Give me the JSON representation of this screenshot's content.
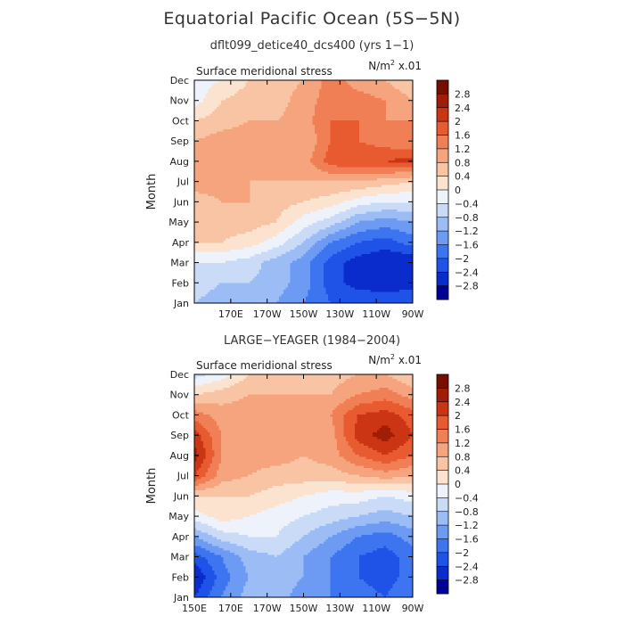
{
  "header": {
    "title": "Equatorial Pacific Ocean (5S−5N)"
  },
  "chart_data": [
    {
      "type": "heatmap",
      "title": "dflt099_detice40_dcs400 (yrs 1−1)",
      "field_label": "Surface meridional stress",
      "units_prefix": "N/m",
      "units_exp": "2",
      "units_suffix": " x.01",
      "ylabel": "Month",
      "xlabel": "",
      "x_tick_labels": [
        "170E",
        "170W",
        "150W",
        "130W",
        "110W",
        "90W"
      ],
      "x_tick_values": [
        170,
        190,
        210,
        230,
        250,
        270
      ],
      "xlim": [
        150,
        270
      ],
      "months": [
        "Jan",
        "Feb",
        "Mar",
        "Apr",
        "May",
        "Jun",
        "Jul",
        "Aug",
        "Sep",
        "Oct",
        "Nov",
        "Dec"
      ],
      "x": [
        150,
        165,
        180,
        195,
        210,
        225,
        240,
        255,
        270
      ],
      "values": [
        [
          -0.8,
          -1.0,
          -1.0,
          -1.2,
          -1.6,
          -2.0,
          -2.0,
          -2.2,
          -2.0
        ],
        [
          -0.6,
          -0.8,
          -0.8,
          -1.0,
          -1.4,
          -2.2,
          -2.6,
          -2.6,
          -2.6
        ],
        [
          -0.4,
          -0.4,
          -0.6,
          -1.0,
          -1.4,
          -2.2,
          -2.6,
          -2.8,
          -2.8
        ],
        [
          0.4,
          0.4,
          0.2,
          -0.2,
          -0.8,
          -1.6,
          -2.0,
          -2.2,
          -1.8
        ],
        [
          0.4,
          0.6,
          0.6,
          0.4,
          -0.2,
          -0.6,
          -1.2,
          -1.4,
          -1.2
        ],
        [
          0.6,
          0.8,
          0.8,
          0.6,
          0.4,
          0.2,
          -0.2,
          -0.4,
          -0.4
        ],
        [
          1.0,
          1.0,
          0.8,
          0.8,
          0.8,
          0.8,
          0.8,
          0.6,
          0.4
        ],
        [
          1.2,
          1.0,
          1.0,
          1.0,
          1.0,
          1.8,
          2.0,
          2.0,
          2.2
        ],
        [
          0.8,
          1.0,
          1.0,
          1.0,
          0.8,
          1.6,
          1.6,
          1.4,
          1.2
        ],
        [
          0.4,
          0.6,
          0.8,
          0.8,
          1.0,
          1.6,
          1.6,
          1.2,
          1.2
        ],
        [
          -0.2,
          0.4,
          0.6,
          0.6,
          1.0,
          1.4,
          1.4,
          1.2,
          0.8
        ],
        [
          -0.2,
          0.0,
          0.4,
          0.6,
          0.8,
          1.4,
          1.0,
          0.8,
          0.4
        ]
      ],
      "colorbar": {
        "levels": [
          -2.8,
          -2.4,
          -2,
          -1.6,
          -1.2,
          -0.8,
          -0.4,
          0,
          0.4,
          0.8,
          1.2,
          1.6,
          2,
          2.4,
          2.8
        ],
        "labels": [
          "−2.8",
          "−2.4",
          "−2",
          "−1.6",
          "−1.2",
          "−0.8",
          "−0.4",
          "0",
          "0.4",
          "0.8",
          "1.2",
          "1.6",
          "2",
          "2.4",
          "2.8"
        ]
      }
    },
    {
      "type": "heatmap",
      "title": "LARGE−YEAGER (1984−2004)",
      "field_label": "Surface meridional stress",
      "units_prefix": "N/m",
      "units_exp": "2",
      "units_suffix": " x.01",
      "ylabel": "Month",
      "xlabel": "",
      "x_tick_labels": [
        "150E",
        "170E",
        "170W",
        "150W",
        "130W",
        "110W",
        "90W"
      ],
      "x_tick_values": [
        150,
        170,
        190,
        210,
        230,
        250,
        270
      ],
      "xlim": [
        150,
        270
      ],
      "months": [
        "Jan",
        "Feb",
        "Mar",
        "Apr",
        "May",
        "Jun",
        "Jul",
        "Aug",
        "Sep",
        "Oct",
        "Nov",
        "Dec"
      ],
      "x": [
        150,
        165,
        180,
        195,
        210,
        225,
        240,
        255,
        270
      ],
      "values": [
        [
          -2.4,
          -1.6,
          -1.0,
          -1.0,
          -1.4,
          -1.6,
          -1.8,
          -2.0,
          -1.6
        ],
        [
          -2.8,
          -1.8,
          -1.2,
          -1.0,
          -1.2,
          -1.6,
          -2.0,
          -2.2,
          -1.8
        ],
        [
          -2.2,
          -1.6,
          -1.0,
          -0.8,
          -1.2,
          -1.6,
          -2.0,
          -2.2,
          -1.8
        ],
        [
          -1.2,
          -0.6,
          -0.4,
          -0.4,
          -0.8,
          -1.2,
          -1.6,
          -1.8,
          -1.4
        ],
        [
          -0.2,
          0.2,
          0.0,
          -0.2,
          -0.4,
          -0.6,
          -0.8,
          -1.0,
          -0.8
        ],
        [
          0.4,
          0.4,
          0.4,
          0.2,
          0.0,
          -0.2,
          -0.2,
          -0.4,
          -0.2
        ],
        [
          2.0,
          1.0,
          0.8,
          0.6,
          0.6,
          0.6,
          0.8,
          1.0,
          0.8
        ],
        [
          2.6,
          1.2,
          1.0,
          1.0,
          0.8,
          1.0,
          1.6,
          2.0,
          1.6
        ],
        [
          2.2,
          1.2,
          1.0,
          1.0,
          1.0,
          1.0,
          2.2,
          2.6,
          2.0
        ],
        [
          1.4,
          1.0,
          1.0,
          1.0,
          1.0,
          1.2,
          2.0,
          2.2,
          1.8
        ],
        [
          0.4,
          0.6,
          0.8,
          0.8,
          0.8,
          0.8,
          1.2,
          1.4,
          1.0
        ],
        [
          -0.6,
          -0.2,
          0.4,
          0.6,
          0.6,
          0.6,
          0.8,
          0.8,
          0.4
        ]
      ],
      "colorbar": {
        "levels": [
          -2.8,
          -2.4,
          -2,
          -1.6,
          -1.2,
          -0.8,
          -0.4,
          0,
          0.4,
          0.8,
          1.2,
          1.6,
          2,
          2.4,
          2.8
        ],
        "labels": [
          "−2.8",
          "−2.4",
          "−2",
          "−1.6",
          "−1.2",
          "−0.8",
          "−0.4",
          "0",
          "0.4",
          "0.8",
          "1.2",
          "1.6",
          "2",
          "2.4",
          "2.8"
        ]
      }
    }
  ],
  "palette": [
    "#000099",
    "#0a2ccc",
    "#1f52e6",
    "#3d74f0",
    "#6d9bf3",
    "#9cbcf5",
    "#cadbf8",
    "#eef3fb",
    "#fbe3cf",
    "#f8c4a3",
    "#f5a47d",
    "#f07f55",
    "#e85b31",
    "#cc3514",
    "#a01e05",
    "#760f00"
  ]
}
